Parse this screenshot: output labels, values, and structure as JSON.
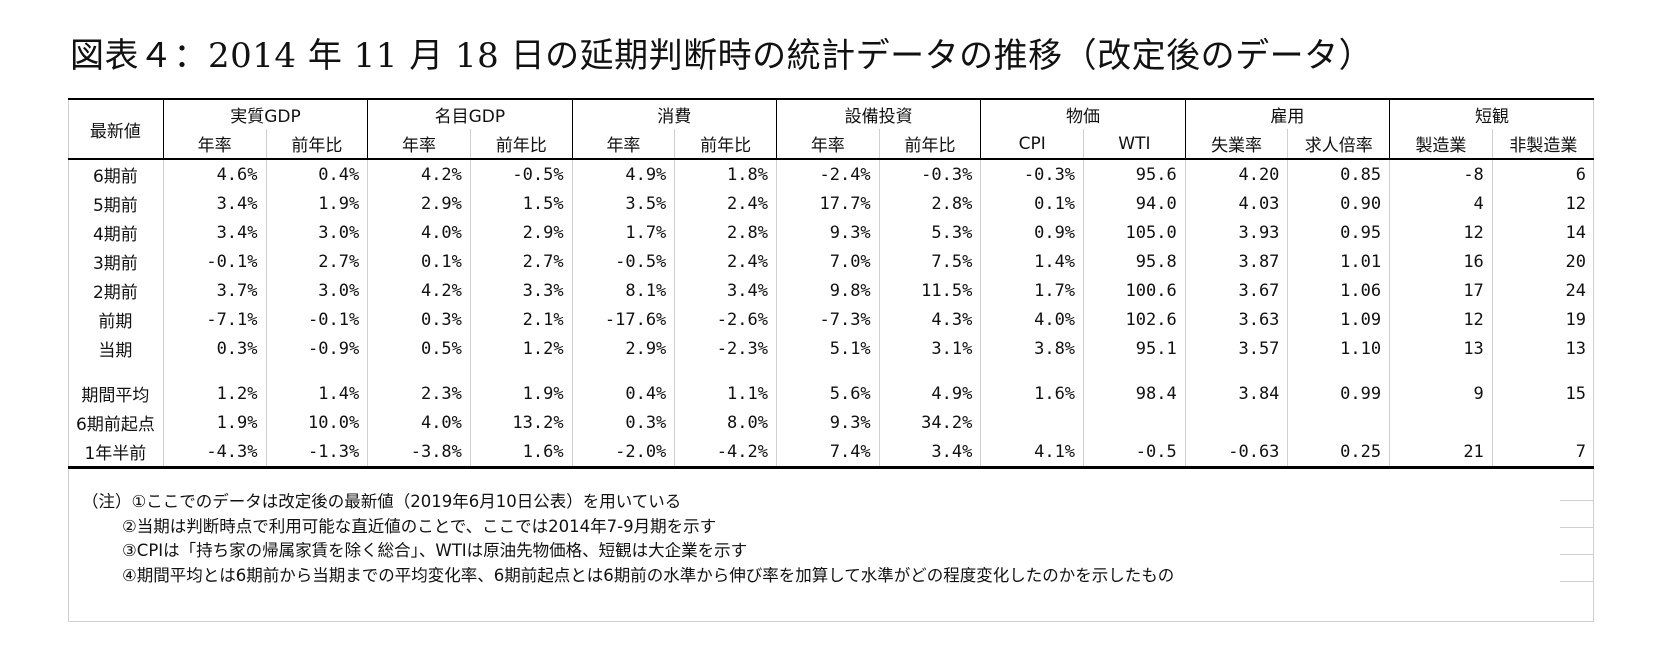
{
  "title": "図表４：2014 年 11 月 18 日の延期判断時の統計データの推移（改定後のデータ）",
  "corner_label": "最新値",
  "groups": [
    "実質GDP",
    "名目GDP",
    "消費",
    "設備投資",
    "物価",
    "雇用",
    "短観"
  ],
  "subheaders": [
    "年率",
    "前年比",
    "年率",
    "前年比",
    "年率",
    "前年比",
    "年率",
    "前年比",
    "CPI",
    "WTI",
    "失業率",
    "求人倍率",
    "製造業",
    "非製造業"
  ],
  "rows": [
    {
      "label": "6期前",
      "values": [
        "4.6%",
        "0.4%",
        "4.2%",
        "-0.5%",
        "4.9%",
        "1.8%",
        "-2.4%",
        "-0.3%",
        "-0.3%",
        "95.6",
        "4.20",
        "0.85",
        "-8",
        "6"
      ]
    },
    {
      "label": "5期前",
      "values": [
        "3.4%",
        "1.9%",
        "2.9%",
        "1.5%",
        "3.5%",
        "2.4%",
        "17.7%",
        "2.8%",
        "0.1%",
        "94.0",
        "4.03",
        "0.90",
        "4",
        "12"
      ]
    },
    {
      "label": "4期前",
      "values": [
        "3.4%",
        "3.0%",
        "4.0%",
        "2.9%",
        "1.7%",
        "2.8%",
        "9.3%",
        "5.3%",
        "0.9%",
        "105.0",
        "3.93",
        "0.95",
        "12",
        "14"
      ]
    },
    {
      "label": "3期前",
      "values": [
        "-0.1%",
        "2.7%",
        "0.1%",
        "2.7%",
        "-0.5%",
        "2.4%",
        "7.0%",
        "7.5%",
        "1.4%",
        "95.8",
        "3.87",
        "1.01",
        "16",
        "20"
      ]
    },
    {
      "label": "2期前",
      "values": [
        "3.7%",
        "3.0%",
        "4.2%",
        "3.3%",
        "8.1%",
        "3.4%",
        "9.8%",
        "11.5%",
        "1.7%",
        "100.6",
        "3.67",
        "1.06",
        "17",
        "24"
      ]
    },
    {
      "label": "前期",
      "values": [
        "-7.1%",
        "-0.1%",
        "0.3%",
        "2.1%",
        "-17.6%",
        "-2.6%",
        "-7.3%",
        "4.3%",
        "4.0%",
        "102.6",
        "3.63",
        "1.09",
        "12",
        "19"
      ]
    },
    {
      "label": "当期",
      "values": [
        "0.3%",
        "-0.9%",
        "0.5%",
        "1.2%",
        "2.9%",
        "-2.3%",
        "5.1%",
        "3.1%",
        "3.8%",
        "95.1",
        "3.57",
        "1.10",
        "13",
        "13"
      ]
    }
  ],
  "summary_rows": [
    {
      "label": "期間平均",
      "values": [
        "1.2%",
        "1.4%",
        "2.3%",
        "1.9%",
        "0.4%",
        "1.1%",
        "5.6%",
        "4.9%",
        "1.6%",
        "98.4",
        "3.84",
        "0.99",
        "9",
        "15"
      ]
    },
    {
      "label": "6期前起点",
      "values": [
        "1.9%",
        "10.0%",
        "4.0%",
        "13.2%",
        "0.3%",
        "8.0%",
        "9.3%",
        "34.2%",
        "",
        "",
        "",
        "",
        "",
        ""
      ]
    },
    {
      "label": "1年半前",
      "values": [
        "-4.3%",
        "-1.3%",
        "-3.8%",
        "1.6%",
        "-2.0%",
        "-4.2%",
        "7.4%",
        "3.4%",
        "4.1%",
        "-0.5",
        "-0.63",
        "0.25",
        "21",
        "7"
      ]
    }
  ],
  "notes": [
    "（注）①ここでのデータは改定後の最新値（2019年6月10日公表）を用いている",
    "②当期は判断時点で利用可能な直近値のことで、ここでは2014年7-9月期を示す",
    "③CPIは「持ち家の帰属家賃を除く総合」、WTIは原油先物価格、短観は大企業を示す",
    "④期間平均とは6期前から当期までの平均変化率、6期前起点とは6期前の水準から伸び率を加算して水準がどの程度変化したのかを示したもの"
  ]
}
